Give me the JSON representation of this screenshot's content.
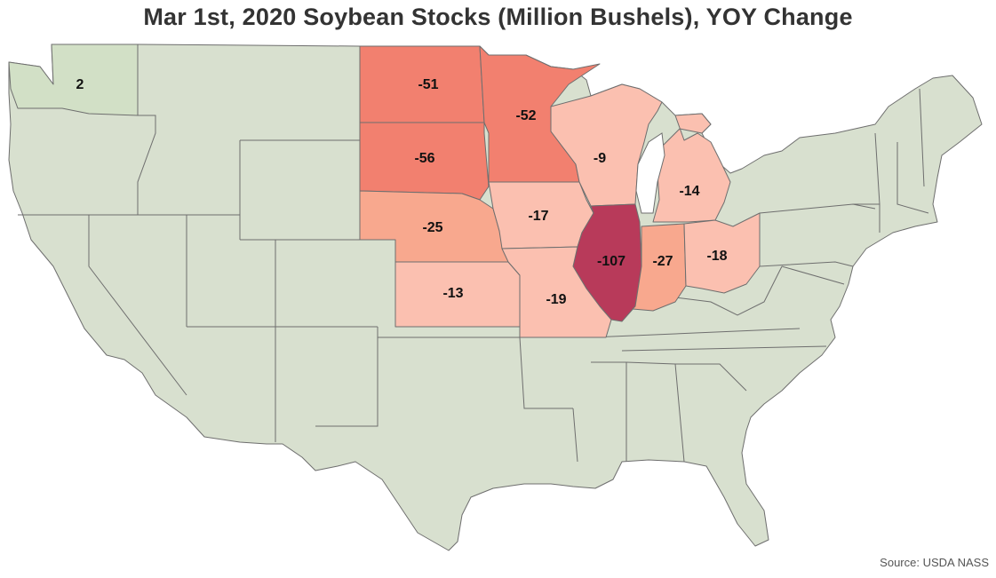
{
  "title": "Mar 1st, 2020 Soybean Stocks (Million Bushels), YOY Change",
  "source": "Source: USDA NASS",
  "colors": {
    "no_data": "#d8e0cf",
    "positive": "#d2e0c6",
    "scale": [
      "#fbc0b0",
      "#f8a88e",
      "#f2806f",
      "#b83a5a"
    ]
  },
  "states": [
    {
      "name": "Washington",
      "value": 2,
      "label": "2"
    },
    {
      "name": "North Dakota",
      "value": -51,
      "label": "-51"
    },
    {
      "name": "Minnesota",
      "value": -52,
      "label": "-52"
    },
    {
      "name": "South Dakota",
      "value": -56,
      "label": "-56"
    },
    {
      "name": "Wisconsin",
      "value": -9,
      "label": "-9"
    },
    {
      "name": "Michigan",
      "value": -14,
      "label": "-14"
    },
    {
      "name": "Nebraska",
      "value": -25,
      "label": "-25"
    },
    {
      "name": "Iowa",
      "value": -17,
      "label": "-17"
    },
    {
      "name": "Illinois",
      "value": -107,
      "label": "-107"
    },
    {
      "name": "Indiana",
      "value": -27,
      "label": "-27"
    },
    {
      "name": "Ohio",
      "value": -18,
      "label": "-18"
    },
    {
      "name": "Kansas",
      "value": -13,
      "label": "-13"
    },
    {
      "name": "Missouri",
      "value": -19,
      "label": "-19"
    }
  ]
}
